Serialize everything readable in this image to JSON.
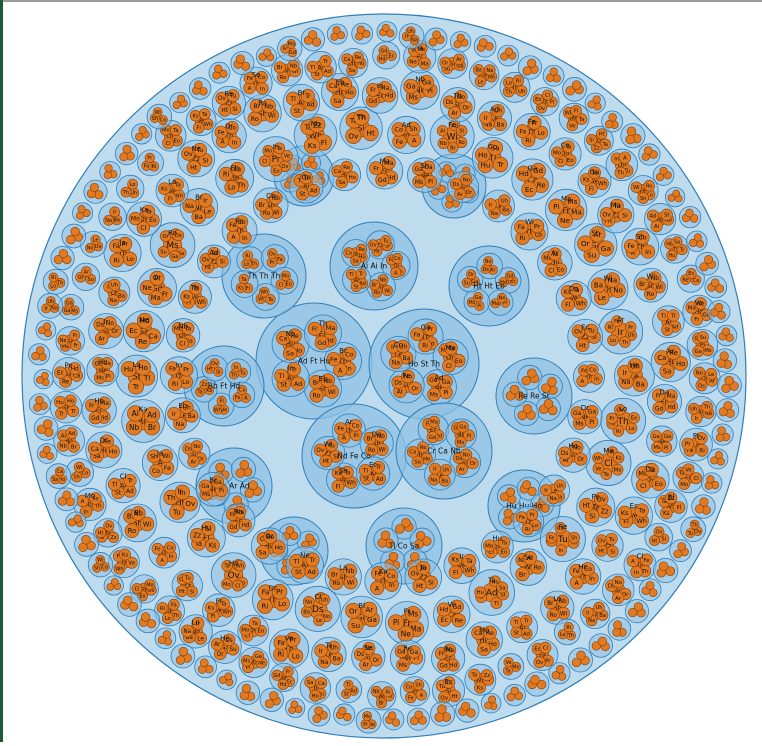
{
  "colors": {
    "background": "#ffffff",
    "root_fill": "#bfdcef",
    "group_fill": "#8fc1e3",
    "group_stroke": "#2f7fb8",
    "leaf_fill": "#e07b24",
    "leaf_stroke": "#8a3f06",
    "label": "#111111",
    "frame_top": "#9a9a9a",
    "frame_left": "#1f5b3a"
  },
  "root": {
    "name": "root-circle"
  },
  "sample_labels": {
    "level_1": [
      "Ad Ft Hu",
      "Ho St Th",
      "Nd Fe Co",
      "Cr Ca Nb",
      "Th Th Th",
      "Ai Ai In",
      "Ht Ht Eb",
      "Re Re St",
      "Bb Ft Hd",
      "Ar Ar Ad",
      "Hu Hu Ho",
      "Tl Co Sa"
    ],
    "level_2": [
      "Br",
      "Eb",
      "In",
      "Nb",
      "Th",
      "Ad",
      "Fe",
      "Co",
      "Ga",
      "Ma",
      "Sh",
      "Wi",
      "Ar",
      "Da",
      "Ec",
      "He",
      "Lo",
      "Mo",
      "Pe",
      "Re",
      "Se",
      "Ta",
      "Ve",
      "Fr",
      "Bl",
      "Cl",
      "Dr",
      "Ho",
      "Hu",
      "Ir",
      "Ja",
      "Ka",
      "La",
      "Ne",
      "Or",
      "Ra"
    ],
    "leaves": [
      "Th",
      "In",
      "A",
      "Fe",
      "Co",
      "Sh",
      "Wi",
      "Ro",
      "Br",
      "Nb",
      "Ai",
      "Ad",
      "St",
      "Tl",
      "Tr",
      "Hu",
      "Ho",
      "Sa",
      "Ca",
      "Re",
      "Ec",
      "Hd",
      "Gd",
      "Fr",
      "Ma",
      "Ne",
      "Pi",
      "Ms",
      "Ga",
      "Ga",
      "Su",
      "Or",
      "Ar",
      "Ds",
      "No",
      "Le",
      "Ba",
      "Na",
      "Ir",
      "Uh",
      "Th",
      "Lo",
      "Ri",
      "Fa",
      "Pr",
      "Ov",
      "Eo",
      "Cl",
      "Mo",
      "Ta",
      "Ve",
      "Wh",
      "Fl",
      "Ks",
      "Ta",
      "Zz",
      "Si",
      "Ht",
      "Ov",
      "Tu"
    ]
  }
}
